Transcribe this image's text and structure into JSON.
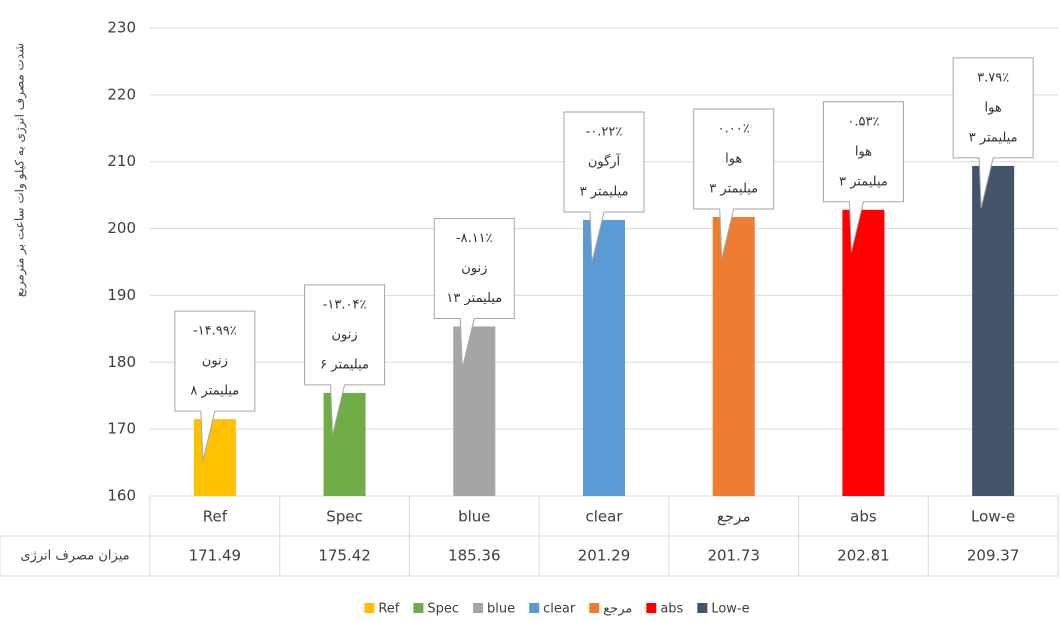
{
  "chart_data": {
    "type": "bar",
    "y_label": "شدت مصرف انرژی به کیلو وات ساعت بر مترمربع",
    "categories": [
      "Ref",
      "Spec",
      "blue",
      "clear",
      "مرجع",
      "abs",
      "Low-e"
    ],
    "values": [
      171.49,
      175.42,
      185.36,
      201.29,
      201.73,
      202.81,
      209.37
    ],
    "colors": [
      "#ffc000",
      "#70ad47",
      "#a5a5a5",
      "#5b9bd5",
      "#ed7d31",
      "#ff0000",
      "#44546a"
    ],
    "table_row_label": "میزان مصرف انرژی",
    "annotations": [
      [
        "-۱۴.۹۹٪",
        "زنون",
        "۸ میلیمتر"
      ],
      [
        "-۱۳.۰۴٪",
        "زنون",
        "۶ میلیمتر"
      ],
      [
        "-۸.۱۱٪",
        "زنون",
        "۱۳ میلیمتر"
      ],
      [
        "-۰.۲۲٪",
        "آرگون",
        "۳ میلیمتر"
      ],
      [
        "۰.۰۰٪",
        "هوا",
        "۳ میلیمتر"
      ],
      [
        "۰.۵۳٪",
        "هوا",
        "۳ میلیمتر"
      ],
      [
        "۳.۷۹٪",
        "هوا",
        "۳ میلیمتر"
      ]
    ],
    "ylim": [
      160,
      230
    ],
    "yticks": [
      160,
      170,
      180,
      190,
      200,
      210,
      220,
      230
    ],
    "grid": true
  }
}
